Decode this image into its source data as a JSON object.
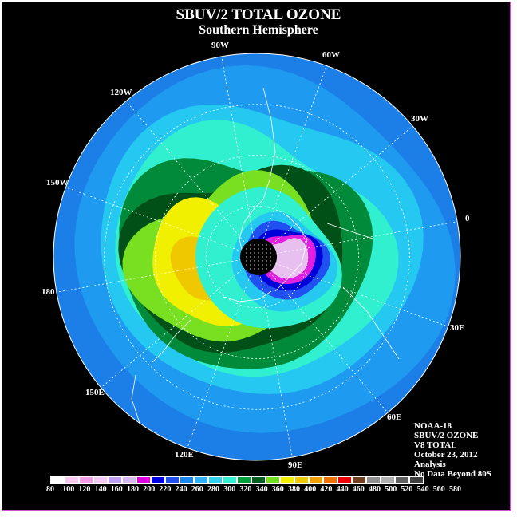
{
  "header": {
    "title": "SBUV/2 TOTAL OZONE",
    "subtitle": "Southern Hemisphere"
  },
  "longitude_labels": [
    "90W",
    "60W",
    "30W",
    "0",
    "30E",
    "60E",
    "90E",
    "120E",
    "150E",
    "180",
    "150W",
    "120W"
  ],
  "info": {
    "satellite": "NOAA-18",
    "instrument": "SBUV/2 OZONE",
    "version": "V8 TOTAL",
    "date": "October 23, 2012",
    "product": "Analysis",
    "note": "No Data Beyond 80S"
  },
  "colorbar": {
    "labels": [
      "80",
      "100",
      "120",
      "140",
      "160",
      "180",
      "200",
      "220",
      "240",
      "260",
      "280",
      "300",
      "320",
      "340",
      "360",
      "380",
      "400",
      "420",
      "440",
      "460",
      "480",
      "500",
      "520",
      "540",
      "560",
      "580"
    ],
    "colors": [
      "#ffffff",
      "#f7c9f0",
      "#f49ce6",
      "#f0c8f0",
      "#c0a0f0",
      "#d8b8f0",
      "#e000e0",
      "#0000e0",
      "#2050f0",
      "#1888f0",
      "#30b0f8",
      "#30d0f0",
      "#30f0d0",
      "#00a040",
      "#006020",
      "#70e020",
      "#f0f000",
      "#f0c800",
      "#f0a000",
      "#f07000",
      "#f00000",
      "#704020",
      "#909090",
      "#b0b0b0",
      "#606060",
      "#404040"
    ]
  },
  "map_colors": {
    "background": "#1c7fe8",
    "ocean_band_1": "#1e9af0",
    "band_2": "#25c8f0",
    "band_3": "#30f0d0",
    "band_4": "#008a3a",
    "band_5": "#005018",
    "band_6": "#78e020",
    "band_7": "#f0f000",
    "band_8": "#f0c800",
    "hole_1": "#2050f0",
    "hole_2": "#0000d8",
    "hole_3": "#e020e0",
    "hole_4": "#e8c0f0",
    "pole_mask": "#000000"
  }
}
